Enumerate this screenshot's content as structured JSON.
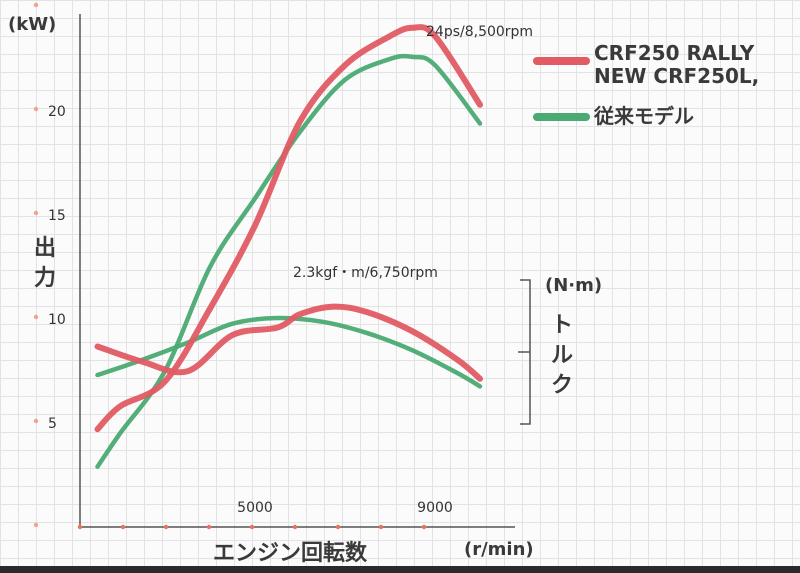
{
  "chart_data": {
    "type": "line",
    "title": "",
    "x_unit": "(r/min)",
    "xlabel": "エンジン回転数",
    "x_ticks": [
      5000,
      9000
    ],
    "x_range": [
      1000,
      11000
    ],
    "power_axis": {
      "unit": "(kW)",
      "label": "出力",
      "ticks": [
        5,
        10,
        15,
        20
      ],
      "range": [
        0,
        25
      ]
    },
    "torque_axis": {
      "unit": "(N·m)",
      "label": "トルク"
    },
    "annotations": {
      "peak_power": "24ps/8,500rpm",
      "peak_torque": "2.3kgf・m/6,750rpm"
    },
    "legend": [
      {
        "label": "CRF250 RALLY",
        "color": "#e05b63"
      },
      {
        "label": "NEW CRF250L,",
        "color": "#e05b63"
      },
      {
        "label": "従来モデル",
        "color": "#4aaa72"
      }
    ],
    "series": [
      {
        "name": "CRF250 RALLY",
        "measure": "power",
        "color": "#e05b63",
        "x": [
          1500,
          2000,
          3000,
          4000,
          5000,
          6000,
          7000,
          8000,
          8500,
          9000,
          10000
        ],
        "y": [
          4.7,
          5.8,
          7.0,
          10.5,
          14.5,
          19.5,
          22.2,
          23.6,
          24.0,
          23.6,
          20.3
        ]
      },
      {
        "name": "従来モデル",
        "measure": "power",
        "color": "#4aaa72",
        "x": [
          1500,
          2000,
          3000,
          4000,
          5000,
          6000,
          7000,
          8000,
          8500,
          9000,
          10000
        ],
        "y": [
          2.9,
          4.5,
          7.5,
          12.5,
          15.8,
          19.0,
          21.5,
          22.5,
          22.6,
          22.2,
          19.4
        ]
      },
      {
        "name": "CRF250 RALLY",
        "measure": "torque",
        "color": "#e05b63",
        "x": [
          1500,
          2500,
          3500,
          4500,
          5500,
          6000,
          6750,
          7500,
          8500,
          9500,
          10000
        ],
        "y": [
          2.05,
          1.97,
          1.92,
          2.11,
          2.15,
          2.22,
          2.26,
          2.23,
          2.13,
          1.98,
          1.88
        ]
      },
      {
        "name": "従来モデル",
        "measure": "torque",
        "color": "#4aaa72",
        "x": [
          1500,
          2500,
          3500,
          4500,
          5500,
          6500,
          7500,
          8500,
          9500,
          10000
        ],
        "y": [
          1.9,
          1.98,
          2.07,
          2.17,
          2.2,
          2.18,
          2.12,
          2.03,
          1.91,
          1.84
        ]
      }
    ]
  }
}
